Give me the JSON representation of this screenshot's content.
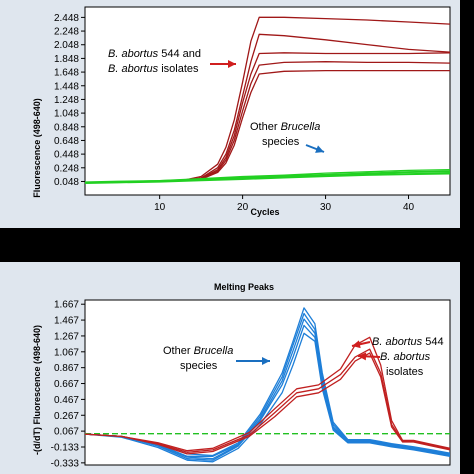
{
  "chart_data": [
    {
      "type": "line",
      "title": "",
      "xlabel": "Cycles",
      "ylabel": "Fluorescence (498-640)",
      "xlim": [
        1,
        45
      ],
      "ylim": [
        -0.15,
        2.6
      ],
      "x_ticks": [
        "10",
        "20",
        "30",
        "40"
      ],
      "x_tick_values": [
        10,
        20,
        30,
        40
      ],
      "y_ticks": [
        "0.048",
        "0.248",
        "0.448",
        "0.648",
        "0.848",
        "1.048",
        "1.248",
        "1.448",
        "1.648",
        "1.848",
        "2.048",
        "2.248",
        "2.448"
      ],
      "y_tick_values": [
        0.048,
        0.248,
        0.448,
        0.648,
        0.848,
        1.048,
        1.248,
        1.448,
        1.648,
        1.848,
        2.048,
        2.248,
        2.448
      ],
      "grid": false,
      "annotations": [
        {
          "lines": [
            "B. abortus 544 and",
            "B. abortus isolates"
          ],
          "arrow_color": "#d01f1f"
        },
        {
          "lines": [
            "Other Brucella",
            "species"
          ],
          "arrow_color": "#1a6fc0"
        }
      ],
      "series": [
        {
          "color": "#a01818",
          "x": [
            1,
            5,
            10,
            13,
            15,
            17,
            18,
            19,
            20,
            21,
            22,
            25,
            30,
            35,
            40,
            45
          ],
          "y": [
            0.03,
            0.04,
            0.05,
            0.07,
            0.12,
            0.3,
            0.55,
            0.95,
            1.5,
            2.1,
            2.45,
            2.45,
            2.43,
            2.41,
            2.38,
            2.35
          ]
        },
        {
          "color": "#a01818",
          "x": [
            1,
            5,
            10,
            13,
            15,
            17,
            18,
            19,
            20,
            21,
            22,
            25,
            30,
            35,
            40,
            45
          ],
          "y": [
            0.03,
            0.04,
            0.05,
            0.06,
            0.1,
            0.25,
            0.45,
            0.8,
            1.3,
            1.8,
            2.2,
            2.18,
            2.12,
            2.05,
            1.98,
            1.94
          ]
        },
        {
          "color": "#a01818",
          "x": [
            1,
            5,
            10,
            13,
            15,
            17,
            18,
            19,
            20,
            21,
            22,
            25,
            30,
            35,
            40,
            45
          ],
          "y": [
            0.03,
            0.04,
            0.05,
            0.06,
            0.09,
            0.22,
            0.4,
            0.72,
            1.2,
            1.62,
            1.92,
            1.93,
            1.92,
            1.92,
            1.92,
            1.93
          ]
        },
        {
          "color": "#a01818",
          "x": [
            1,
            5,
            10,
            13,
            15,
            17,
            18,
            19,
            20,
            21,
            22,
            25,
            30,
            35,
            40,
            45
          ],
          "y": [
            0.03,
            0.04,
            0.05,
            0.06,
            0.08,
            0.2,
            0.36,
            0.65,
            1.08,
            1.48,
            1.75,
            1.79,
            1.8,
            1.79,
            1.79,
            1.78
          ]
        },
        {
          "color": "#a01818",
          "x": [
            1,
            5,
            10,
            13,
            15,
            17,
            18,
            19,
            20,
            21,
            22,
            25,
            30,
            35,
            40,
            45
          ],
          "y": [
            0.03,
            0.04,
            0.05,
            0.06,
            0.08,
            0.18,
            0.32,
            0.58,
            0.98,
            1.35,
            1.62,
            1.66,
            1.67,
            1.67,
            1.67,
            1.67
          ]
        },
        {
          "color": "#22d022",
          "x": [
            1,
            5,
            10,
            15,
            20,
            25,
            30,
            35,
            40,
            45
          ],
          "y": [
            0.03,
            0.04,
            0.05,
            0.07,
            0.09,
            0.11,
            0.13,
            0.15,
            0.16,
            0.17
          ]
        },
        {
          "color": "#22d022",
          "x": [
            1,
            5,
            10,
            15,
            20,
            25,
            30,
            35,
            40,
            45
          ],
          "y": [
            0.03,
            0.04,
            0.06,
            0.08,
            0.1,
            0.13,
            0.15,
            0.17,
            0.19,
            0.2
          ]
        },
        {
          "color": "#22d022",
          "x": [
            1,
            5,
            10,
            15,
            20,
            25,
            30,
            35,
            40,
            45
          ],
          "y": [
            0.04,
            0.05,
            0.06,
            0.09,
            0.12,
            0.14,
            0.17,
            0.19,
            0.21,
            0.22
          ]
        },
        {
          "color": "#22d022",
          "x": [
            1,
            5,
            10,
            15,
            20,
            25,
            30,
            35,
            40,
            45
          ],
          "y": [
            0.03,
            0.04,
            0.05,
            0.08,
            0.11,
            0.12,
            0.14,
            0.16,
            0.18,
            0.19
          ]
        },
        {
          "color": "#22d022",
          "x": [
            1,
            5,
            10,
            15,
            20,
            25,
            30,
            35,
            40,
            45
          ],
          "y": [
            0.02,
            0.03,
            0.04,
            0.06,
            0.08,
            0.1,
            0.12,
            0.14,
            0.15,
            0.16
          ]
        }
      ]
    },
    {
      "type": "line",
      "title": "Melting Peaks",
      "xlabel": "",
      "ylabel": "-(d/dT) Fluorescence (498-640)",
      "xlim": [
        0,
        100
      ],
      "ylim": [
        -0.36,
        1.72
      ],
      "x_ticks": [],
      "y_ticks": [
        "-0.333",
        "-0.133",
        "0.067",
        "0.267",
        "0.467",
        "0.667",
        "0.867",
        "1.067",
        "1.267",
        "1.467",
        "1.667"
      ],
      "y_tick_values": [
        -0.333,
        -0.133,
        0.067,
        0.267,
        0.467,
        0.667,
        0.867,
        1.067,
        1.267,
        1.467,
        1.667
      ],
      "grid": false,
      "annotations": [
        {
          "lines": [
            "Other Brucella",
            "species"
          ],
          "arrow_color": "#1a6fc0"
        },
        {
          "lines": [
            "B. abortus 544"
          ],
          "arrow_color": "#d01f1f"
        },
        {
          "lines": [
            "B. abortus",
            "isolates"
          ],
          "arrow_color": "#d01f1f"
        }
      ],
      "series": [
        {
          "color": "#22c022",
          "dash": true,
          "x": [
            0,
            100
          ],
          "y": [
            0.035,
            0.035
          ]
        },
        {
          "color": "#1e7fd8",
          "x": [
            0,
            10,
            20,
            28,
            35,
            42,
            48,
            54,
            57,
            60,
            63,
            65,
            68,
            72,
            78,
            84,
            90,
            95,
            100
          ],
          "y": [
            0.03,
            0.0,
            -0.1,
            -0.25,
            -0.25,
            -0.1,
            0.25,
            0.75,
            1.15,
            1.55,
            1.35,
            0.75,
            0.15,
            -0.05,
            -0.05,
            -0.1,
            -0.14,
            -0.18,
            -0.22
          ]
        },
        {
          "color": "#1e7fd8",
          "x": [
            0,
            10,
            20,
            28,
            35,
            42,
            48,
            54,
            57,
            60,
            63,
            65,
            68,
            72,
            78,
            84,
            90,
            95,
            100
          ],
          "y": [
            0.03,
            0.0,
            -0.12,
            -0.28,
            -0.3,
            -0.12,
            0.2,
            0.65,
            1.0,
            1.4,
            1.25,
            0.65,
            0.1,
            -0.07,
            -0.07,
            -0.12,
            -0.16,
            -0.2,
            -0.24
          ]
        },
        {
          "color": "#1e7fd8",
          "x": [
            0,
            10,
            20,
            28,
            35,
            42,
            48,
            54,
            57,
            60,
            63,
            65,
            68,
            72,
            78,
            84,
            90,
            95,
            100
          ],
          "y": [
            0.03,
            -0.01,
            -0.14,
            -0.3,
            -0.32,
            -0.15,
            0.15,
            0.55,
            0.9,
            1.3,
            1.2,
            0.6,
            0.08,
            -0.08,
            -0.08,
            -0.13,
            -0.17,
            -0.21,
            -0.25
          ]
        },
        {
          "color": "#1e7fd8",
          "x": [
            0,
            10,
            20,
            28,
            35,
            42,
            48,
            54,
            57,
            60,
            63,
            65,
            68,
            72,
            78,
            84,
            90,
            95,
            100
          ],
          "y": [
            0.03,
            0.0,
            -0.09,
            -0.22,
            -0.24,
            -0.08,
            0.28,
            0.8,
            1.2,
            1.62,
            1.42,
            0.8,
            0.18,
            -0.04,
            -0.04,
            -0.09,
            -0.13,
            -0.17,
            -0.21
          ]
        },
        {
          "color": "#1e7fd8",
          "x": [
            0,
            10,
            20,
            28,
            35,
            42,
            48,
            54,
            57,
            60,
            63,
            65,
            68,
            72,
            78,
            84,
            90,
            95,
            100
          ],
          "y": [
            0.03,
            0.0,
            -0.11,
            -0.26,
            -0.28,
            -0.11,
            0.22,
            0.7,
            1.08,
            1.48,
            1.3,
            0.7,
            0.12,
            -0.06,
            -0.06,
            -0.11,
            -0.15,
            -0.19,
            -0.23
          ]
        },
        {
          "color": "#c02020",
          "x": [
            0,
            10,
            20,
            28,
            35,
            45,
            52,
            58,
            64,
            70,
            74,
            78,
            81,
            84,
            87,
            90,
            95,
            100
          ],
          "y": [
            0.03,
            0.0,
            -0.08,
            -0.18,
            -0.15,
            0.05,
            0.35,
            0.6,
            0.65,
            0.85,
            1.15,
            1.25,
            0.9,
            0.2,
            -0.05,
            -0.05,
            -0.1,
            -0.15
          ]
        },
        {
          "color": "#c02020",
          "x": [
            0,
            10,
            20,
            28,
            35,
            45,
            52,
            58,
            64,
            70,
            74,
            78,
            81,
            84,
            87,
            90,
            95,
            100
          ],
          "y": [
            0.03,
            0.0,
            -0.09,
            -0.2,
            -0.17,
            0.02,
            0.3,
            0.55,
            0.6,
            0.78,
            1.0,
            1.1,
            0.8,
            0.15,
            -0.06,
            -0.06,
            -0.11,
            -0.16
          ]
        },
        {
          "color": "#c02020",
          "x": [
            0,
            10,
            20,
            28,
            35,
            45,
            52,
            58,
            64,
            70,
            74,
            78,
            81,
            84,
            87,
            90,
            95,
            100
          ],
          "y": [
            0.03,
            0.0,
            -0.1,
            -0.22,
            -0.19,
            0.0,
            0.25,
            0.5,
            0.55,
            0.72,
            0.95,
            1.05,
            0.75,
            0.12,
            -0.07,
            -0.07,
            -0.12,
            -0.17
          ]
        }
      ]
    }
  ]
}
